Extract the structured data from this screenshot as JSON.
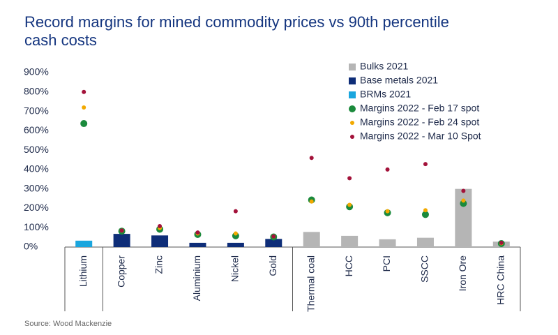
{
  "chart_data": {
    "type": "combo",
    "title_lines": [
      "Record margins for mined commodity prices vs 90th percentile",
      "cash costs"
    ],
    "source": "Source: Wood Mackenzie",
    "categories": [
      "Lithium",
      "Copper",
      "Zinc",
      "Aluminium",
      "Nickel",
      "Gold",
      "Thermal coal",
      "HCC",
      "PCI",
      "SSCC",
      "Iron Ore",
      "HRC China"
    ],
    "ylim": [
      0,
      900
    ],
    "yticks": [
      {
        "value": 0,
        "label": "0%"
      },
      {
        "value": 100,
        "label": "100%"
      },
      {
        "value": 200,
        "label": "200%"
      },
      {
        "value": 300,
        "label": "300%"
      },
      {
        "value": 400,
        "label": "400%"
      },
      {
        "value": 500,
        "label": "500%"
      },
      {
        "value": 600,
        "label": "600%"
      },
      {
        "value": 700,
        "label": "700%"
      },
      {
        "value": 800,
        "label": "800%"
      },
      {
        "value": 900,
        "label": "900%"
      }
    ],
    "series": [
      {
        "name": "Bulks 2021",
        "type": "bar",
        "color": "#b5b5b5",
        "values": [
          null,
          null,
          null,
          null,
          null,
          null,
          78,
          58,
          40,
          48,
          300,
          28
        ]
      },
      {
        "name": "Base metals 2021",
        "type": "bar",
        "color": "#0e2d78",
        "values": [
          null,
          68,
          60,
          22,
          22,
          42,
          null,
          null,
          null,
          null,
          null,
          null
        ]
      },
      {
        "name": "BRMs 2021",
        "type": "bar",
        "color": "#1aa6de",
        "values": [
          33,
          null,
          null,
          null,
          null,
          null,
          null,
          null,
          null,
          null,
          null,
          null
        ]
      },
      {
        "name": "Margins 2022 - Feb 17 spot",
        "type": "scatter",
        "color": "#1b8a3c",
        "values": [
          637,
          82,
          92,
          65,
          58,
          52,
          243,
          208,
          177,
          168,
          225,
          18
        ]
      },
      {
        "name": "Margins 2022 - Feb 24 spot",
        "type": "scatter",
        "color": "#f2a900",
        "values": [
          720,
          85,
          98,
          70,
          70,
          55,
          235,
          218,
          185,
          190,
          240,
          20
        ]
      },
      {
        "name": "Margins 2022 - Mar 10 Spot",
        "type": "scatter",
        "color": "#a3123a",
        "values": [
          800,
          85,
          108,
          75,
          185,
          55,
          460,
          355,
          400,
          428,
          290,
          22
        ]
      }
    ]
  }
}
